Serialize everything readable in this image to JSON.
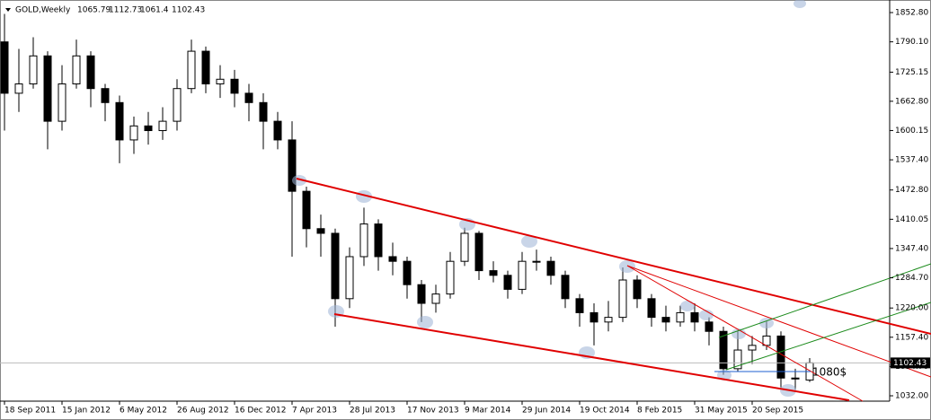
{
  "chart_data": {
    "type": "candlestick",
    "title": "GOLD,Weekly",
    "categories": [
      "18 Sep 2011",
      null,
      null,
      null,
      "15 Jan 2012",
      null,
      null,
      null,
      "6 May 2012",
      null,
      null,
      null,
      "26 Aug 2012",
      null,
      null,
      null,
      "16 Dec 2012",
      null,
      null,
      null,
      "7 Apr 2013",
      null,
      null,
      null,
      "28 Jul 2013",
      null,
      null,
      null,
      "17 Nov 2013",
      null,
      null,
      null,
      "9 Mar 2014",
      null,
      null,
      null,
      "29 Jun 2014",
      null,
      null,
      null,
      "19 Oct 2014",
      null,
      null,
      null,
      "8 Feb 2015",
      null,
      null,
      null,
      "31 May 2015",
      null,
      null,
      null,
      "20 Sep 2015",
      null,
      null,
      null,
      null
    ],
    "open": [
      1790,
      1680,
      1700,
      1760,
      1620,
      1700,
      1760,
      1690,
      1660,
      1580,
      1610,
      1600,
      1620,
      1690,
      1770,
      1700,
      1710,
      1680,
      1660,
      1620,
      1580,
      1470,
      1390,
      1380,
      1240,
      1330,
      1400,
      1330,
      1320,
      1270,
      1230,
      1250,
      1320,
      1380,
      1300,
      1290,
      1260,
      1320,
      1320,
      1290,
      1240,
      1210,
      1190,
      1200,
      1280,
      1240,
      1200,
      1190,
      1210,
      1190,
      1170,
      1090,
      1130,
      1140,
      1160,
      1070,
      1065.79
    ],
    "high": [
      1850,
      1775,
      1800,
      1770,
      1740,
      1795,
      1770,
      1700,
      1675,
      1630,
      1640,
      1650,
      1710,
      1795,
      1780,
      1740,
      1730,
      1700,
      1680,
      1640,
      1620,
      1480,
      1420,
      1390,
      1350,
      1435,
      1410,
      1360,
      1330,
      1280,
      1270,
      1340,
      1392,
      1385,
      1320,
      1300,
      1340,
      1345,
      1330,
      1300,
      1250,
      1230,
      1235,
      1307,
      1290,
      1250,
      1225,
      1225,
      1230,
      1200,
      1180,
      1170,
      1160,
      1191,
      1170,
      1090,
      1112.73
    ],
    "low": [
      1600,
      1640,
      1690,
      1560,
      1600,
      1690,
      1650,
      1620,
      1530,
      1550,
      1570,
      1580,
      1600,
      1680,
      1680,
      1670,
      1650,
      1620,
      1560,
      1560,
      1330,
      1350,
      1330,
      1180,
      1220,
      1310,
      1300,
      1290,
      1240,
      1190,
      1210,
      1240,
      1310,
      1280,
      1275,
      1240,
      1250,
      1300,
      1270,
      1220,
      1180,
      1140,
      1170,
      1190,
      1220,
      1180,
      1170,
      1180,
      1170,
      1140,
      1077,
      1085,
      1100,
      1130,
      1050,
      1045,
      1061.4
    ],
    "close": [
      1680,
      1700,
      1760,
      1620,
      1700,
      1760,
      1690,
      1660,
      1580,
      1610,
      1600,
      1620,
      1690,
      1770,
      1700,
      1710,
      1680,
      1660,
      1620,
      1580,
      1470,
      1390,
      1380,
      1240,
      1330,
      1400,
      1330,
      1320,
      1270,
      1230,
      1250,
      1320,
      1380,
      1300,
      1290,
      1260,
      1320,
      1320,
      1290,
      1240,
      1210,
      1190,
      1200,
      1280,
      1240,
      1200,
      1190,
      1210,
      1190,
      1170,
      1090,
      1130,
      1140,
      1160,
      1070,
      1068,
      1102.43
    ],
    "ylim": [
      1020.5,
      1870.1
    ],
    "yticks": [
      {
        "value": 1852.8,
        "label": "1852.80"
      },
      {
        "value": 1790.1,
        "label": "1790.10"
      },
      {
        "value": 1725.15,
        "label": "1725.15"
      },
      {
        "value": 1662.8,
        "label": "1662.80"
      },
      {
        "value": 1600.15,
        "label": "1600.15"
      },
      {
        "value": 1537.4,
        "label": "1537.40"
      },
      {
        "value": 1472.8,
        "label": "1472.80"
      },
      {
        "value": 1410.05,
        "label": "1410.05"
      },
      {
        "value": 1347.4,
        "label": "1347.40"
      },
      {
        "value": 1284.7,
        "label": "1284.70"
      },
      {
        "value": 1220,
        "label": "1220.00"
      },
      {
        "value": 1157.4,
        "label": "1157.40"
      },
      {
        "value": 1094.7,
        "label": "1094.70"
      },
      {
        "value": 1032,
        "label": "1032.00"
      }
    ],
    "annotation": "1080$"
  }
}
